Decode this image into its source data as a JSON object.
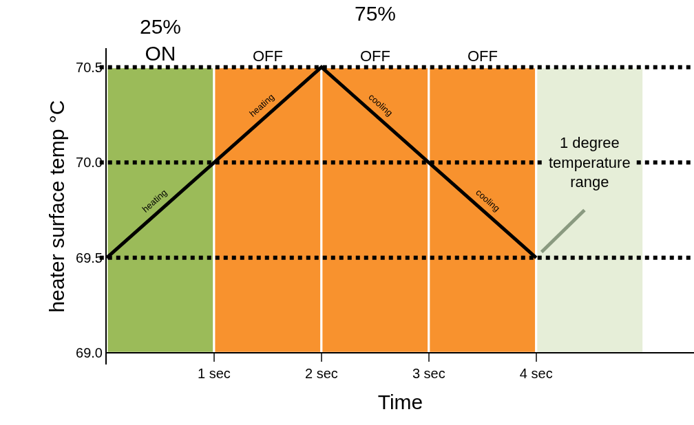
{
  "chart_data": {
    "type": "line",
    "xlabel": "Time",
    "ylabel": "heater surface temp °C",
    "x": [
      0,
      1,
      2,
      3,
      4
    ],
    "series": [
      {
        "color": "#000000",
        "values": [
          69.5,
          70.0,
          70.5,
          70.0,
          69.5
        ]
      }
    ],
    "xlim": [
      0,
      5.47
    ],
    "ylim": [
      68.94,
      70.6
    ],
    "xticks": [
      {
        "value": 1,
        "label": "1 sec"
      },
      {
        "value": 2,
        "label": "2 sec"
      },
      {
        "value": 3,
        "label": "3 sec"
      },
      {
        "value": 4,
        "label": "4 sec"
      }
    ],
    "yticks": [
      {
        "value": 69.0,
        "label": "69.0"
      },
      69.5,
      {
        "value": 70.0,
        "label": "70.0"
      },
      70.5
    ],
    "ref_lines": [
      {
        "axis": "y",
        "value": 69.5,
        "color": "#000000",
        "line_style": "dotted"
      },
      {
        "axis": "y",
        "value": 70.0,
        "color": "#000000",
        "line_style": "dotted"
      },
      {
        "axis": "y",
        "value": 70.5,
        "color": "#000000",
        "line_style": "dotted"
      }
    ],
    "bands": [
      {
        "axis": "x",
        "from": 0,
        "to": 1,
        "label": "25%\nON",
        "color": "#9bbb59"
      },
      {
        "axis": "x",
        "from": 1,
        "to": 2,
        "label": "OFF",
        "color": "#f8922e"
      },
      {
        "axis": "x",
        "from": 2,
        "to": 3,
        "label": "OFF",
        "color": "#f8922e"
      },
      {
        "axis": "x",
        "from": 3,
        "to": 4,
        "label": "OFF",
        "color": "#f8922e"
      },
      {
        "axis": "x",
        "from": 4,
        "to": 5,
        "color": "#e6eed8"
      }
    ],
    "annotations": [
      "75%",
      {
        "text": "heating",
        "x": 0.5,
        "y": 69.75
      },
      {
        "text": "heating",
        "x": 1.5,
        "y": 70.25
      },
      {
        "text": "cooling",
        "x": 2.5,
        "y": 70.25
      },
      {
        "text": "cooling",
        "x": 3.5,
        "y": 69.75
      },
      {
        "text": "1 degree\ntemperature\nrange",
        "x": 4.5,
        "y": 70.0
      }
    ],
    "marker": "none",
    "line_style": "solid"
  }
}
